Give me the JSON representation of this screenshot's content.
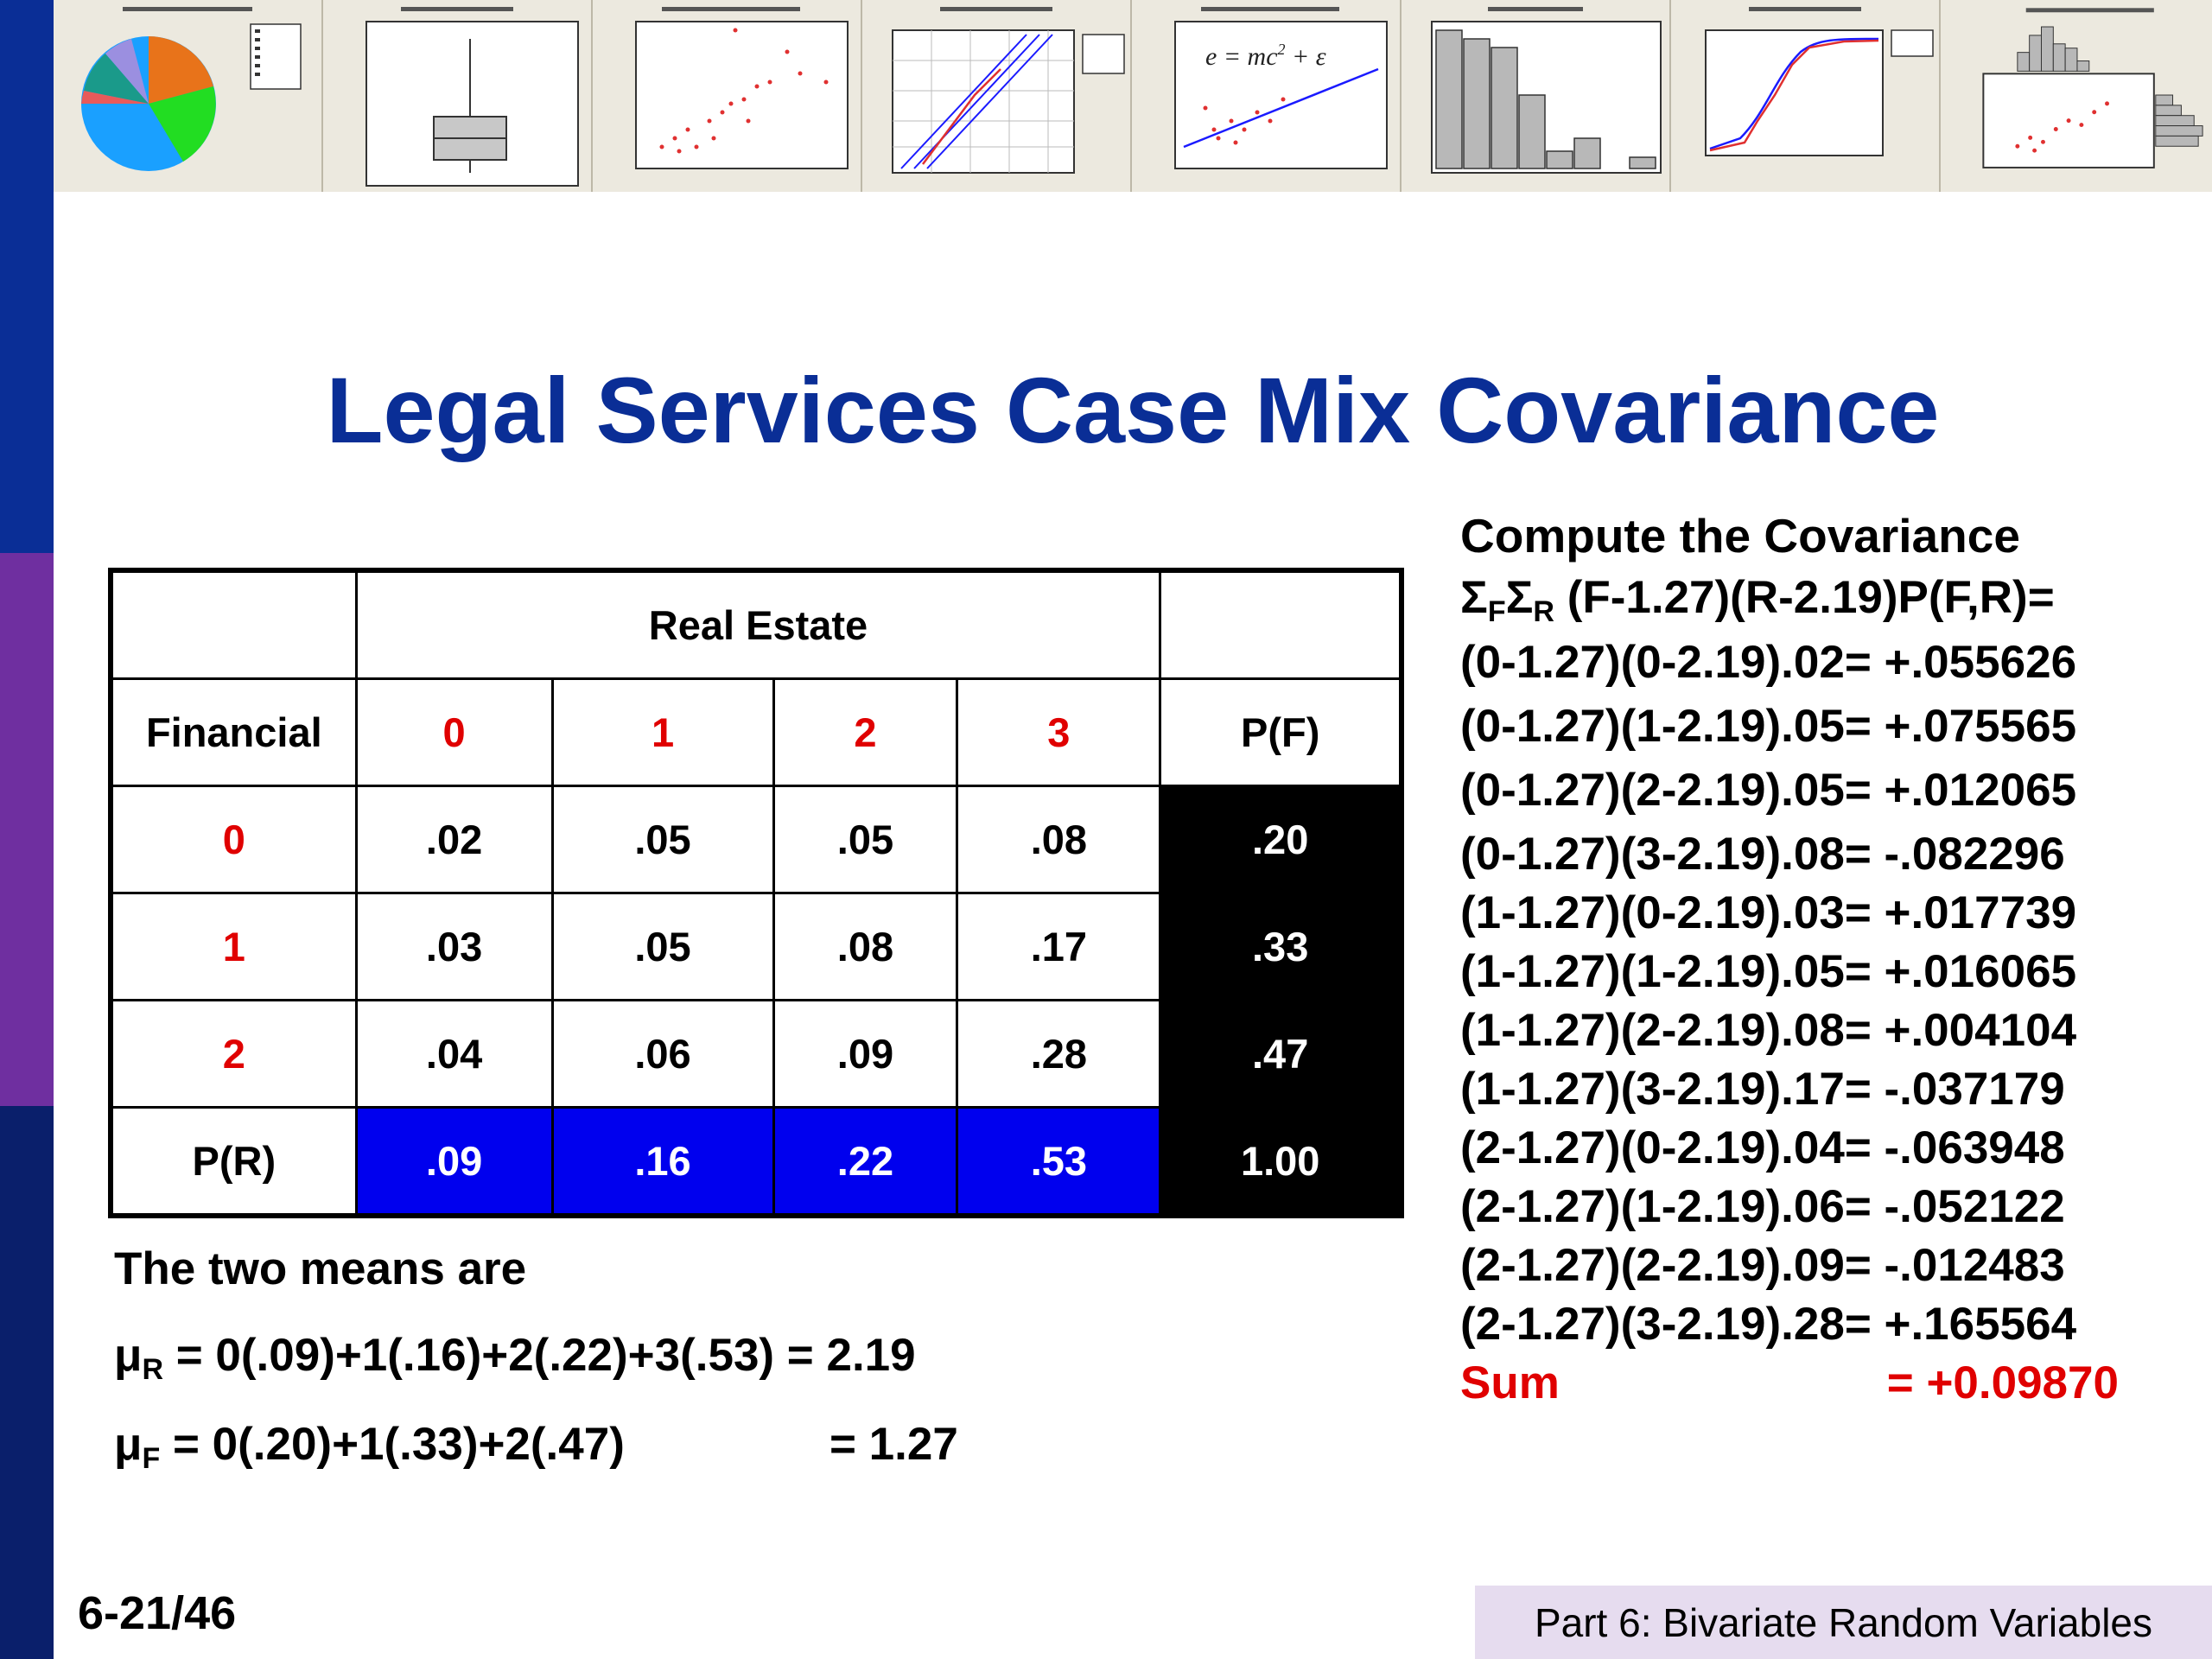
{
  "slide": {
    "title": "Legal Services Case Mix Covariance",
    "page_number": "6-21/46",
    "footer": "Part 6: Bivariate Random Variables"
  },
  "table": {
    "top_header": "Real Estate",
    "row_header_label": "Financial",
    "pf_label": "P(F)",
    "pr_label": "P(R)",
    "columns": [
      "0",
      "1",
      "2",
      "3"
    ],
    "rows": [
      {
        "label": "0",
        "cells": [
          ".02",
          ".05",
          ".05",
          ".08"
        ],
        "pf": ".20"
      },
      {
        "label": "1",
        "cells": [
          ".03",
          ".05",
          ".08",
          ".17"
        ],
        "pf": ".33"
      },
      {
        "label": "2",
        "cells": [
          ".04",
          ".06",
          ".09",
          ".28"
        ],
        "pf": ".47"
      }
    ],
    "pr": [
      ".09",
      ".16",
      ".22",
      ".53"
    ],
    "total": "1.00"
  },
  "means": {
    "intro": "The two means are",
    "mu_r_symbol": "μ",
    "mu_r_sub": "R",
    "mu_r_expr": " = 0(.09)+1(.16)+2(.22)+3(.53) = 2.19",
    "mu_f_symbol": "μ",
    "mu_f_sub": "F",
    "mu_f_expr": " = 0(.20)+1(.33)+2(.47)",
    "mu_f_value": "= 1.27"
  },
  "compute": {
    "heading": "Compute the Covariance",
    "formula_sigma1": "Σ",
    "formula_sub1": "F",
    "formula_sigma2": "Σ",
    "formula_sub2": "R",
    "formula_rest": " (F-1.27)(R-2.19)P(F,R)=",
    "terms": [
      "(0-1.27)(0-2.19).02= +.055626",
      "(0-1.27)(1-2.19).05= +.075565",
      "(0-1.27)(2-2.19).05= +.012065",
      "(0-1.27)(3-2.19).08=  -.082296",
      "(1-1.27)(0-2.19).03= +.017739",
      "(1-1.27)(1-2.19).05= +.016065",
      "(1-1.27)(2-2.19).08= +.004104",
      "(1-1.27)(3-2.19).17= -.037179",
      "(2-1.27)(0-2.19).04= -.063948",
      "(2-1.27)(1-2.19).06= -.052122",
      "(2-1.27)(2-2.19).09= -.012483",
      "(2-1.27)(3-2.19).28= +.165564"
    ],
    "sum_label": "Sum",
    "sum_value": "= +0.09870"
  },
  "thumbnail_equation": {
    "lhs": "e = mc",
    "exp": "2",
    "rhs": " + ε"
  },
  "colors": {
    "title_blue": "#0a2e96",
    "accent_red": "#e00000",
    "pr_blue": "#0000ee",
    "sidebar_purple": "#6f2fa0",
    "footer_lavender": "#e6dcef"
  }
}
